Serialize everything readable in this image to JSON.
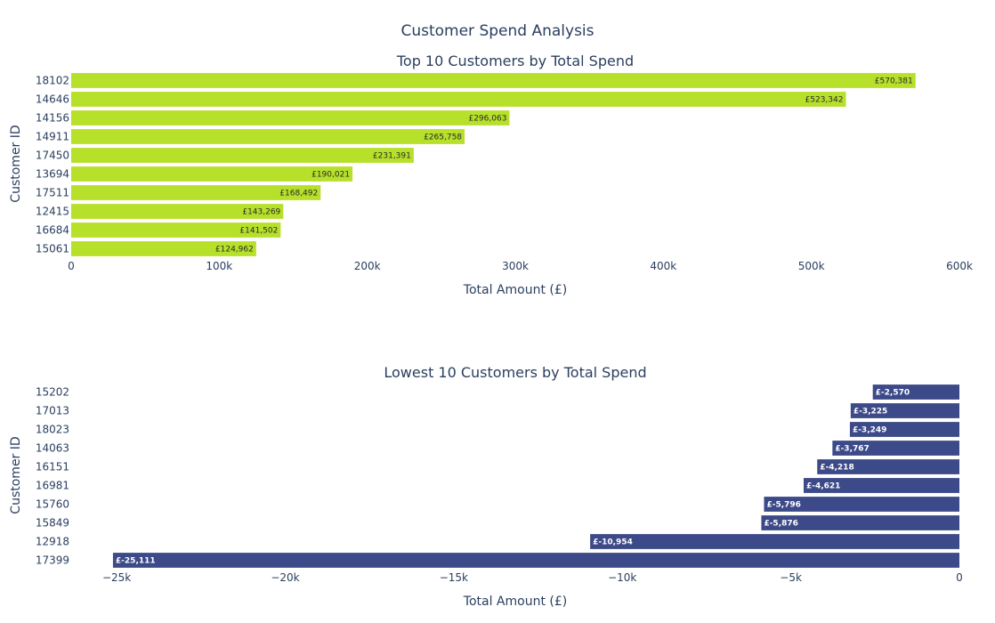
{
  "chart_data": {
    "title": "Customer Spend Analysis",
    "charts": [
      {
        "type": "bar",
        "orientation": "horizontal",
        "title": "Top 10 Customers by Total Spend",
        "xlabel": "Total Amount (£)",
        "ylabel": "Customer ID",
        "xlim": [
          0,
          600000
        ],
        "xticks": [
          0,
          100000,
          200000,
          300000,
          400000,
          500000,
          600000
        ],
        "xtick_labels": [
          "0",
          "100k",
          "200k",
          "300k",
          "400k",
          "500k",
          "600k"
        ],
        "bar_color": "#b6e02a",
        "label_color": "#2a2a2a",
        "categories": [
          "18102",
          "14646",
          "14156",
          "14911",
          "17450",
          "13694",
          "17511",
          "12415",
          "16684",
          "15061"
        ],
        "values": [
          570381,
          523342,
          296063,
          265758,
          231391,
          190021,
          168492,
          143269,
          141502,
          124962
        ],
        "value_labels": [
          "£570,381",
          "£523,342",
          "£296,063",
          "£265,758",
          "£231,391",
          "£190,021",
          "£168,492",
          "£143,269",
          "£141,502",
          "£124,962"
        ]
      },
      {
        "type": "bar",
        "orientation": "horizontal",
        "title": "Lowest 10 Customers by Total Spend",
        "xlabel": "Total Amount (£)",
        "ylabel": "Customer ID",
        "xlim": [
          -26350,
          0
        ],
        "xticks": [
          -25000,
          -20000,
          -15000,
          -10000,
          -5000,
          0
        ],
        "xtick_labels": [
          "−25k",
          "−20k",
          "−15k",
          "−10k",
          "−5k",
          "0"
        ],
        "bar_color": "#3d4a89",
        "label_color": "#ffffff",
        "categories": [
          "15202",
          "17013",
          "18023",
          "14063",
          "16151",
          "16981",
          "15760",
          "15849",
          "12918",
          "17399"
        ],
        "values": [
          -2570,
          -3225,
          -3249,
          -3767,
          -4218,
          -4621,
          -5796,
          -5876,
          -10954,
          -25111
        ],
        "value_labels": [
          "£-2,570",
          "£-3,225",
          "£-3,249",
          "£-3,767",
          "£-4,218",
          "£-4,621",
          "£-5,796",
          "£-5,876",
          "£-10,954",
          "£-25,111"
        ]
      }
    ]
  }
}
